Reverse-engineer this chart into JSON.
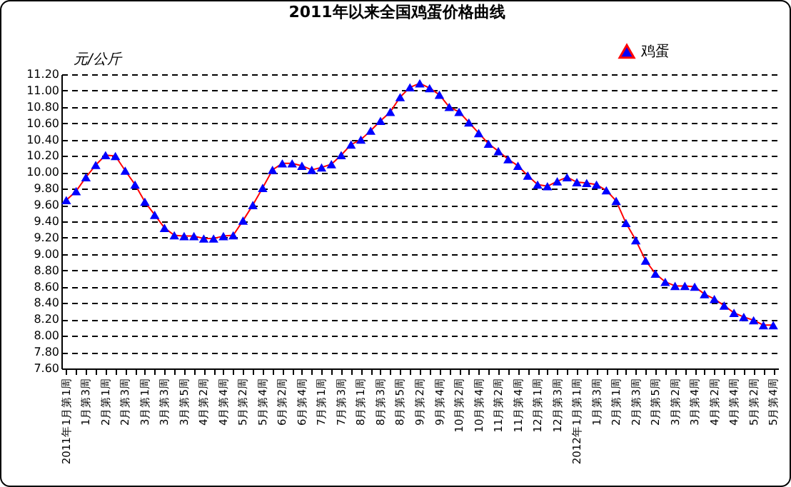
{
  "chart_data": {
    "type": "line",
    "title": "2011年以来全国鸡蛋价格曲线",
    "ylabel": "元/公斤",
    "categories": [
      "2011年1月第1周",
      null,
      "1月第3周",
      null,
      "2月第1周",
      null,
      "2月第3周",
      null,
      "3月第1周",
      null,
      "3月第3周",
      null,
      "3月第5周",
      null,
      "4月第2周",
      null,
      "4月第4周",
      null,
      "5月第2周",
      null,
      "5月第4周",
      null,
      "6月第2周",
      null,
      "6月第4周",
      null,
      "7月第1周",
      null,
      "7月第3周",
      null,
      "8月第1周",
      null,
      "8月第3周",
      null,
      "8月第5周",
      null,
      "9月第2周",
      null,
      "9月第4周",
      null,
      "10月第2周",
      null,
      "10月第4周",
      null,
      "11月第2周",
      null,
      "11月第4周",
      null,
      "12月第1周",
      null,
      "12月第3周",
      null,
      "2012年1月第1周",
      null,
      "1月第3周",
      null,
      "2月第1周",
      null,
      "2月第3周",
      null,
      "2月第5周",
      null,
      "3月第2周",
      null,
      "3月第4周",
      null,
      "4月第2周",
      null,
      "4月第4周",
      null,
      "5月第2周",
      null,
      "5月第4周"
    ],
    "series": [
      {
        "name": "鸡蛋",
        "color": "#0000ff",
        "values": [
          9.66,
          9.77,
          9.94,
          10.09,
          10.21,
          10.2,
          10.02,
          9.85,
          9.64,
          9.48,
          9.32,
          9.23,
          9.22,
          9.22,
          9.19,
          9.19,
          9.22,
          9.23,
          9.41,
          9.6,
          9.81,
          10.03,
          10.11,
          10.11,
          10.08,
          10.03,
          10.06,
          10.1,
          10.21,
          10.34,
          10.4,
          10.51,
          10.63,
          10.74,
          10.92,
          11.04,
          11.09,
          11.03,
          10.95,
          10.8,
          10.74,
          10.61,
          10.48,
          10.35,
          10.26,
          10.16,
          10.08,
          9.96,
          9.85,
          9.83,
          9.89,
          9.94,
          9.88,
          9.87,
          9.85,
          9.78,
          9.65,
          9.38,
          9.17,
          8.92,
          8.76,
          8.66,
          8.61,
          8.61,
          8.6,
          8.51,
          8.45,
          8.37,
          8.28,
          8.23,
          8.19,
          8.13,
          8.13
        ]
      }
    ],
    "ylim": [
      7.6,
      11.2
    ],
    "yticks": [
      {
        "value": 7.6,
        "label": "7.60"
      },
      {
        "value": 7.8,
        "label": "7.80"
      },
      {
        "value": 8,
        "label": "8.00"
      },
      {
        "value": 8.2,
        "label": "8.20"
      },
      {
        "value": 8.4,
        "label": "8.40"
      },
      {
        "value": 8.6,
        "label": "8.60"
      },
      {
        "value": 8.8,
        "label": "8.80"
      },
      {
        "value": 9,
        "label": "9.00"
      },
      {
        "value": 9.2,
        "label": "9.20"
      },
      {
        "value": 9.4,
        "label": "9.40"
      },
      {
        "value": 9.6,
        "label": "9.60"
      },
      {
        "value": 9.8,
        "label": "9.80"
      },
      {
        "value": 10,
        "label": "10.00"
      },
      {
        "value": 10.2,
        "label": "10.20"
      },
      {
        "value": 10.4,
        "label": "10.40"
      },
      {
        "value": 10.6,
        "label": "10.60"
      },
      {
        "value": 10.8,
        "label": "10.80"
      },
      {
        "value": 11,
        "label": "11.00"
      },
      {
        "value": 11.2,
        "label": "11.20"
      }
    ],
    "grid": "y",
    "legend": "top right",
    "marker": "triangle",
    "line_style": "solid"
  }
}
